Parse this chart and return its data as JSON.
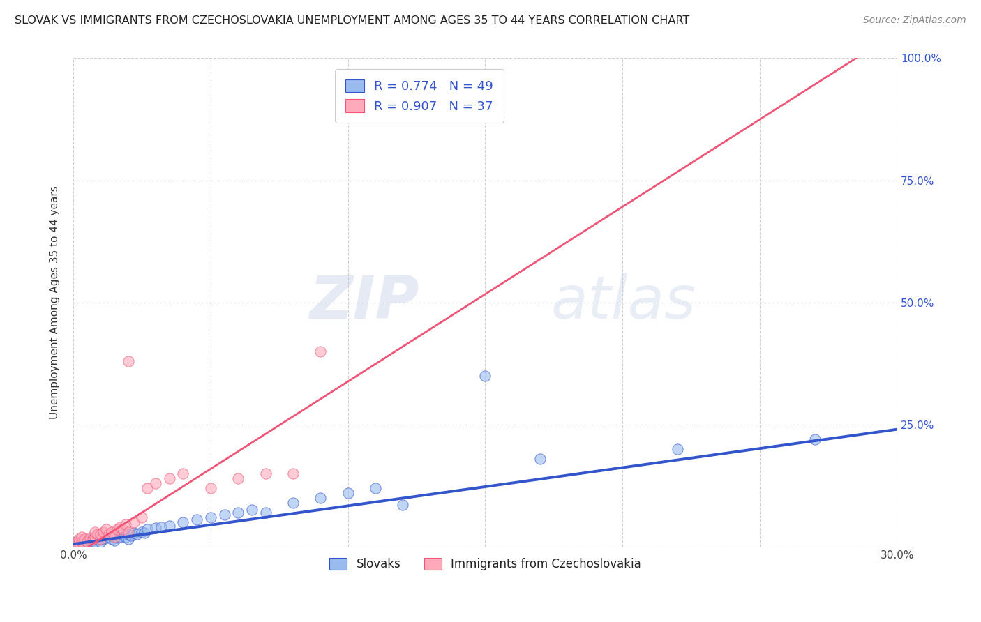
{
  "title": "SLOVAK VS IMMIGRANTS FROM CZECHOSLOVAKIA UNEMPLOYMENT AMONG AGES 35 TO 44 YEARS CORRELATION CHART",
  "source": "Source: ZipAtlas.com",
  "ylabel": "Unemployment Among Ages 35 to 44 years",
  "xlim": [
    0.0,
    0.3
  ],
  "ylim": [
    0.0,
    1.0
  ],
  "xticks": [
    0.0,
    0.05,
    0.1,
    0.15,
    0.2,
    0.25,
    0.3
  ],
  "yticks": [
    0.0,
    0.25,
    0.5,
    0.75,
    1.0
  ],
  "xticklabels": [
    "0.0%",
    "",
    "",
    "",
    "",
    "",
    "30.0%"
  ],
  "yticklabels_right": [
    "",
    "25.0%",
    "50.0%",
    "75.0%",
    "100.0%"
  ],
  "background_color": "#ffffff",
  "blue_R": 0.774,
  "blue_N": 49,
  "pink_R": 0.907,
  "pink_N": 37,
  "blue_color": "#99bbee",
  "pink_color": "#ffaabb",
  "blue_line_color": "#3355cc",
  "pink_line_color": "#ee5577",
  "blue_scatter_x": [
    0.001,
    0.001,
    0.003,
    0.004,
    0.005,
    0.006,
    0.007,
    0.008,
    0.008,
    0.009,
    0.01,
    0.01,
    0.011,
    0.012,
    0.013,
    0.014,
    0.015,
    0.015,
    0.016,
    0.017,
    0.018,
    0.019,
    0.02,
    0.02,
    0.021,
    0.022,
    0.023,
    0.025,
    0.026,
    0.027,
    0.03,
    0.032,
    0.035,
    0.04,
    0.045,
    0.05,
    0.055,
    0.06,
    0.065,
    0.07,
    0.08,
    0.09,
    0.1,
    0.11,
    0.12,
    0.15,
    0.17,
    0.22,
    0.27
  ],
  "blue_scatter_y": [
    0.005,
    0.01,
    0.008,
    0.012,
    0.01,
    0.015,
    0.012,
    0.01,
    0.018,
    0.015,
    0.01,
    0.02,
    0.015,
    0.018,
    0.02,
    0.015,
    0.012,
    0.022,
    0.018,
    0.02,
    0.025,
    0.02,
    0.015,
    0.025,
    0.022,
    0.028,
    0.025,
    0.03,
    0.028,
    0.035,
    0.038,
    0.04,
    0.042,
    0.05,
    0.055,
    0.06,
    0.065,
    0.07,
    0.075,
    0.07,
    0.09,
    0.1,
    0.11,
    0.12,
    0.085,
    0.35,
    0.18,
    0.2,
    0.22
  ],
  "pink_scatter_x": [
    0.001,
    0.001,
    0.002,
    0.002,
    0.003,
    0.003,
    0.004,
    0.005,
    0.006,
    0.007,
    0.008,
    0.008,
    0.009,
    0.01,
    0.01,
    0.011,
    0.012,
    0.013,
    0.014,
    0.015,
    0.016,
    0.017,
    0.018,
    0.019,
    0.02,
    0.02,
    0.022,
    0.025,
    0.027,
    0.03,
    0.035,
    0.04,
    0.05,
    0.06,
    0.07,
    0.08,
    0.09
  ],
  "pink_scatter_y": [
    0.005,
    0.01,
    0.008,
    0.015,
    0.01,
    0.02,
    0.015,
    0.01,
    0.018,
    0.015,
    0.02,
    0.03,
    0.025,
    0.015,
    0.025,
    0.03,
    0.035,
    0.025,
    0.03,
    0.02,
    0.035,
    0.04,
    0.035,
    0.045,
    0.03,
    0.38,
    0.05,
    0.06,
    0.12,
    0.13,
    0.14,
    0.15,
    0.12,
    0.14,
    0.15,
    0.15,
    0.4
  ],
  "pink_line_x0": 0.0,
  "pink_line_y0": -0.02,
  "pink_line_x1": 0.285,
  "pink_line_y1": 1.0,
  "blue_line_x0": 0.0,
  "blue_line_y0": 0.005,
  "blue_line_x1": 0.3,
  "blue_line_y1": 0.24
}
